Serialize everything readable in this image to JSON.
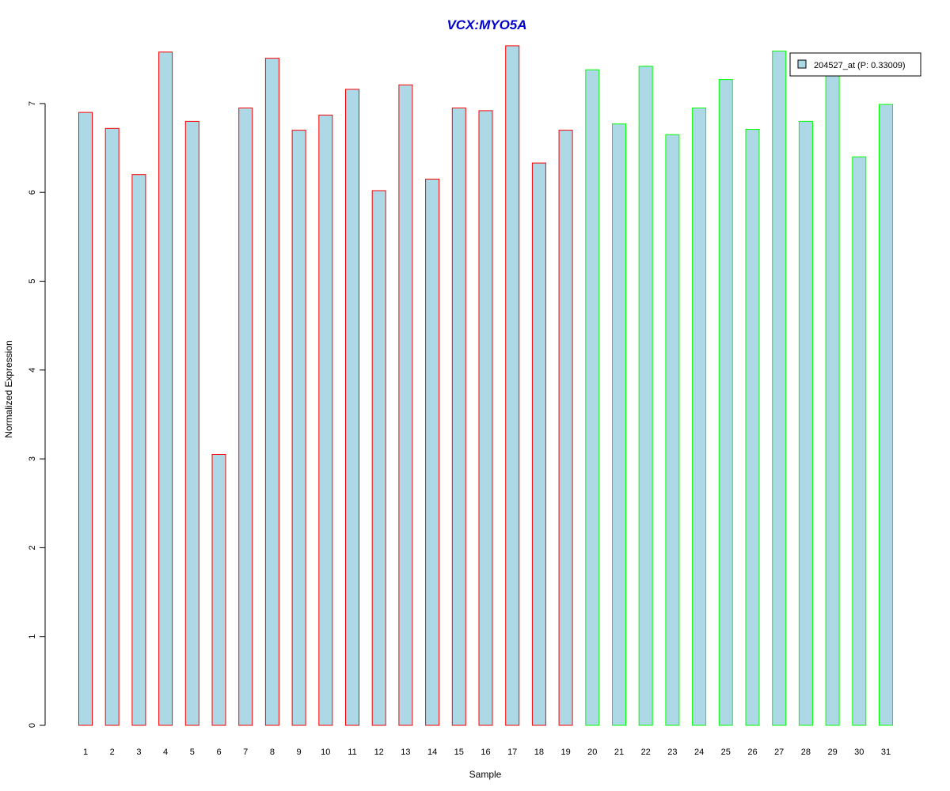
{
  "chart_data": {
    "type": "bar",
    "title": "VCX:MYO5A",
    "xlabel": "Sample",
    "ylabel": "Normalized Expression",
    "categories": [
      "1",
      "2",
      "3",
      "4",
      "5",
      "6",
      "7",
      "8",
      "9",
      "10",
      "11",
      "12",
      "13",
      "14",
      "15",
      "16",
      "17",
      "18",
      "19",
      "20",
      "21",
      "22",
      "23",
      "24",
      "25",
      "26",
      "27",
      "28",
      "29",
      "30",
      "31"
    ],
    "series": [
      {
        "name": "204527_at (P: 0.33009)",
        "values": [
          6.9,
          6.72,
          6.2,
          7.58,
          6.8,
          3.05,
          6.95,
          7.51,
          6.7,
          6.87,
          7.16,
          6.02,
          7.21,
          6.15,
          6.95,
          6.92,
          7.65,
          6.33,
          6.7,
          7.38,
          6.77,
          7.42,
          6.65,
          6.95,
          7.27,
          6.71,
          7.59,
          6.8,
          7.36,
          6.4,
          6.99
        ]
      }
    ],
    "ylim": [
      0,
      7.65
    ],
    "yticks": [
      "0",
      "1",
      "2",
      "3",
      "4",
      "5",
      "6",
      "7"
    ],
    "legend_position": "top-right",
    "group_sizes": [
      19,
      12
    ],
    "colors": {
      "fill": "#add8e6",
      "group1_border": "#ff0000",
      "group2_border": "#00ff00",
      "title": "#0000cd",
      "axis": "#000000"
    }
  }
}
